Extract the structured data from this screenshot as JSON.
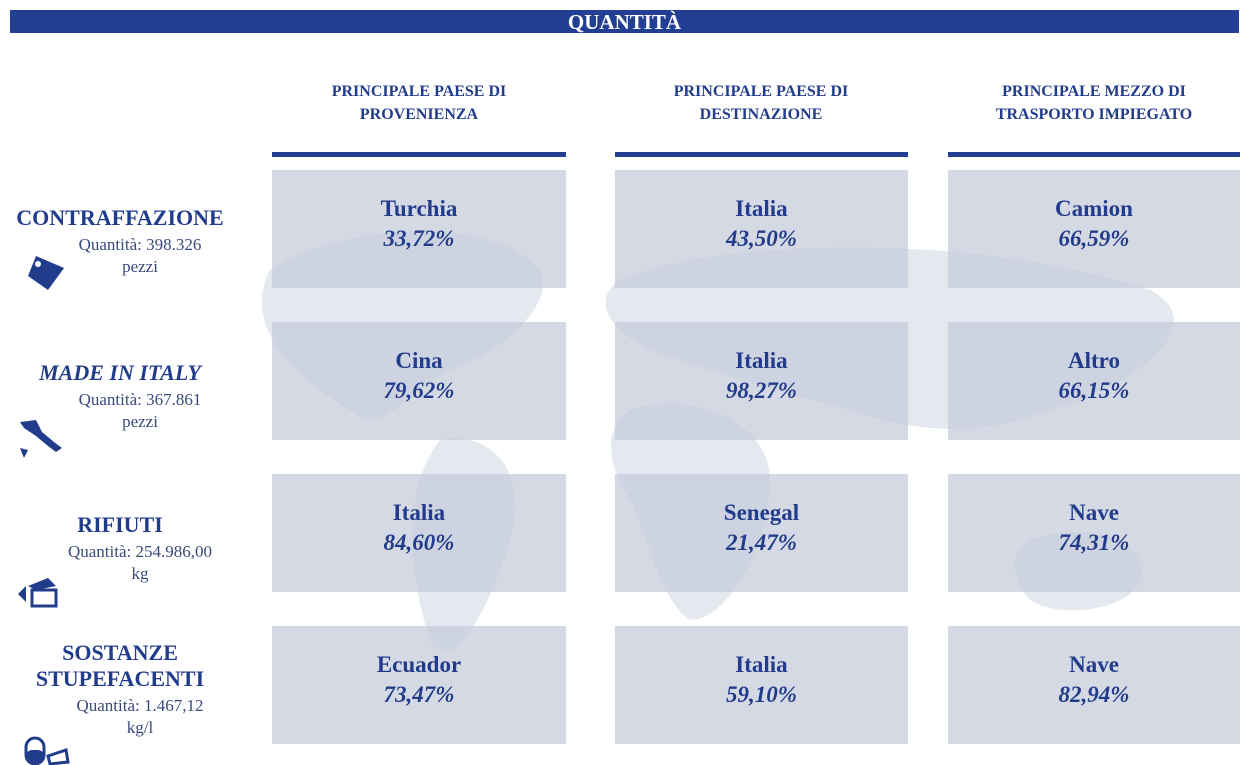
{
  "header": {
    "title": "QUANTITÀ"
  },
  "columns": [
    [
      "PRINCIPALE PAESE DI",
      "PROVENIENZA"
    ],
    [
      "PRINCIPALE PAESE DI",
      "DESTINAZIONE"
    ],
    [
      "PRINCIPALE MEZZO DI",
      "TRASPORTO IMPIEGATO"
    ]
  ],
  "rows": [
    {
      "label": [
        "CONTRAFFAZIONE"
      ],
      "quantity": "Quantità: 398.326",
      "unit": "pezzi",
      "cells": [
        {
          "name": "Turchia",
          "share": "33,72%"
        },
        {
          "name": "Italia",
          "share": "43,50%"
        },
        {
          "name": "Camion",
          "share": "66,59%"
        }
      ]
    },
    {
      "label": [
        "MADE IN ITALY"
      ],
      "quantity": "Quantità:  367.861",
      "unit": "pezzi",
      "cells": [
        {
          "name": "Cina",
          "share": "79,62%"
        },
        {
          "name": "Italia",
          "share": "98,27%"
        },
        {
          "name": "Altro",
          "share": "66,15%"
        }
      ]
    },
    {
      "label": [
        "RIFIUTI"
      ],
      "quantity": "Quantità:  254.986,00",
      "unit": "kg",
      "cells": [
        {
          "name": "Italia",
          "share": "84,60%"
        },
        {
          "name": "Senegal",
          "share": "21,47%"
        },
        {
          "name": "Nave",
          "share": "74,31%"
        }
      ]
    },
    {
      "label": [
        "SOSTANZE",
        "STUPEFACENTI"
      ],
      "quantity": "Quantità:  1.467,12",
      "unit": "kg/l",
      "cells": [
        {
          "name": "Ecuador",
          "share": "73,47%"
        },
        {
          "name": "Italia",
          "share": "59,10%"
        },
        {
          "name": "Nave",
          "share": "82,94%"
        }
      ]
    }
  ]
}
